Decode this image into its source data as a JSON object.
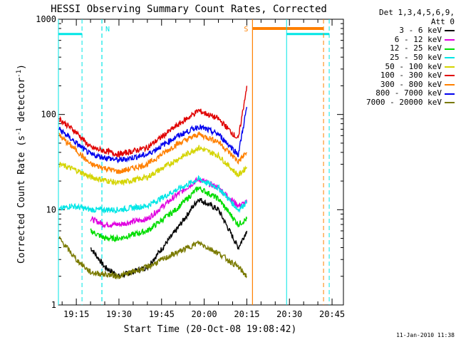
{
  "chart_data": {
    "type": "line",
    "title": "HESSI Observing Summary Count Rates, Corrected",
    "ylabel_parts": [
      "Corrected Count Rate (s",
      "-1",
      " detector",
      "-1",
      ")"
    ],
    "xlabel": "Start Time (20-Oct-08 19:08:42)",
    "y_scale": "log",
    "ylim": [
      1,
      1000
    ],
    "y_ticks": [
      1,
      10,
      100,
      1000
    ],
    "y_tick_labels": [
      "1",
      "10",
      "100",
      "1000"
    ],
    "xlim": [
      "19:08:42",
      "20:49:00"
    ],
    "x_ticks": [
      "19:15",
      "19:30",
      "19:45",
      "20:00",
      "20:15",
      "20:30",
      "20:45"
    ],
    "detectors_header": [
      "Det 1,3,4,5,6,9,",
      "Att 0"
    ],
    "legend_position": "right",
    "series": [
      {
        "name": "3 - 6 keV",
        "color": "#000000",
        "x": [
          "19:20",
          "19:25",
          "19:30",
          "19:40",
          "19:50",
          "19:58",
          "20:05",
          "20:12",
          "20:15"
        ],
        "values": [
          4,
          2.5,
          2,
          2.5,
          6,
          13,
          10,
          4,
          6
        ]
      },
      {
        "name": "6 - 12 keV",
        "color": "#e000e0",
        "x": [
          "19:20",
          "19:25",
          "19:30",
          "19:40",
          "19:50",
          "19:58",
          "20:05",
          "20:12",
          "20:15"
        ],
        "values": [
          8,
          7,
          7,
          8,
          14,
          21,
          17,
          11,
          12
        ]
      },
      {
        "name": "12 - 25 keV",
        "color": "#00dd00",
        "x": [
          "19:20",
          "19:25",
          "19:30",
          "19:40",
          "19:50",
          "19:58",
          "20:05",
          "20:12",
          "20:15"
        ],
        "values": [
          6,
          5,
          5,
          6,
          10,
          17,
          13,
          7,
          8
        ]
      },
      {
        "name": "25 - 50 keV",
        "color": "#00e6e6",
        "x": [
          "19:09",
          "19:13",
          "19:20",
          "19:30",
          "19:40",
          "19:50",
          "19:58",
          "20:05",
          "20:12",
          "20:15"
        ],
        "values": [
          10,
          11,
          10,
          10,
          11,
          16,
          21,
          17,
          10,
          12
        ]
      },
      {
        "name": "50 - 100 keV",
        "color": "#d4d400",
        "x": [
          "19:09",
          "19:15",
          "19:20",
          "19:30",
          "19:40",
          "19:50",
          "19:58",
          "20:05",
          "20:12",
          "20:15"
        ],
        "values": [
          30,
          26,
          22,
          19,
          22,
          33,
          45,
          37,
          23,
          28
        ]
      },
      {
        "name": "100 - 300 keV",
        "color": "#e00000",
        "x": [
          "19:09",
          "19:15",
          "19:20",
          "19:30",
          "19:40",
          "19:50",
          "19:58",
          "20:05",
          "20:12",
          "20:15"
        ],
        "values": [
          90,
          65,
          45,
          38,
          45,
          75,
          110,
          90,
          55,
          200
        ]
      },
      {
        "name": "300 - 800 keV",
        "color": "#ff8000",
        "x": [
          "19:09",
          "19:15",
          "19:20",
          "19:30",
          "19:40",
          "19:50",
          "19:58",
          "20:05",
          "20:12",
          "20:15"
        ],
        "values": [
          60,
          42,
          30,
          25,
          30,
          48,
          62,
          52,
          32,
          40
        ]
      },
      {
        "name": "800 - 7000 keV",
        "color": "#0000ee",
        "x": [
          "19:09",
          "19:15",
          "19:20",
          "19:30",
          "19:40",
          "19:50",
          "19:58",
          "20:05",
          "20:12",
          "20:15"
        ],
        "values": [
          70,
          50,
          38,
          33,
          38,
          58,
          75,
          62,
          38,
          120
        ]
      },
      {
        "name": "7000 - 20000 keV",
        "color": "#7a7a00",
        "x": [
          "19:09",
          "19:15",
          "19:20",
          "19:30",
          "19:40",
          "19:50",
          "19:58",
          "20:05",
          "20:12",
          "20:15"
        ],
        "values": [
          5,
          3,
          2.2,
          2,
          2.5,
          3.5,
          4.5,
          3.5,
          2.5,
          2
        ]
      }
    ],
    "annotations": [
      {
        "label": "N",
        "color": "#00e6e6",
        "line_x": "19:24"
      },
      {
        "label": "S",
        "color": "#ff8000",
        "line_x": "20:17"
      }
    ],
    "night_bars": [
      {
        "color": "#00e6e6",
        "from": "19:08:42",
        "to": "19:17",
        "y": 700
      },
      {
        "color": "#00e6e6",
        "from": "20:29",
        "to": "20:44",
        "y": 700
      }
    ],
    "saa_bar": {
      "color": "#ff8000",
      "from": "20:17",
      "to": "20:42",
      "y": 800
    },
    "timestamp": "11-Jan-2010 11:38"
  }
}
